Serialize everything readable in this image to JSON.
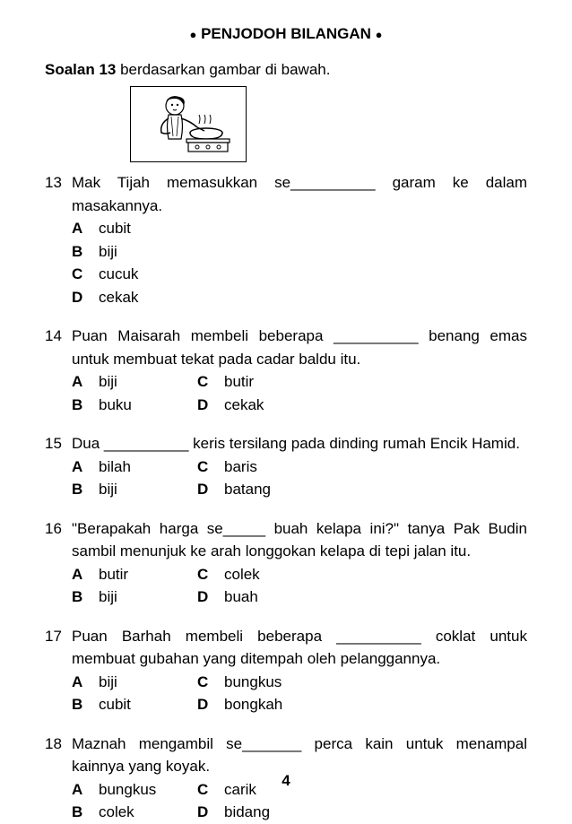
{
  "title_text": "PENJODOH BILANGAN",
  "instruction_prefix": "Soalan 13",
  "instruction_rest": " berdasarkan gambar di bawah.",
  "page_number": "4",
  "questions": [
    {
      "num": "13",
      "text": "Mak Tijah memasukkan se__________ garam ke dalam masakannya.",
      "layout": "1col",
      "options": [
        {
          "letter": "A",
          "text": "cubit"
        },
        {
          "letter": "B",
          "text": "biji"
        },
        {
          "letter": "C",
          "text": "cucuk"
        },
        {
          "letter": "D",
          "text": "cekak"
        }
      ]
    },
    {
      "num": "14",
      "text": "Puan Maisarah membeli beberapa __________ benang emas untuk membuat tekat pada cadar baldu itu.",
      "layout": "2col",
      "options": [
        {
          "letter": "A",
          "text": "biji"
        },
        {
          "letter": "C",
          "text": "butir"
        },
        {
          "letter": "B",
          "text": "buku"
        },
        {
          "letter": "D",
          "text": "cekak"
        }
      ]
    },
    {
      "num": "15",
      "text": "Dua __________ keris tersilang pada dinding rumah Encik Hamid.",
      "layout": "2col",
      "options": [
        {
          "letter": "A",
          "text": "bilah"
        },
        {
          "letter": "C",
          "text": "baris"
        },
        {
          "letter": "B",
          "text": "biji"
        },
        {
          "letter": "D",
          "text": "batang"
        }
      ]
    },
    {
      "num": "16",
      "text": "\"Berapakah harga se_____ buah kelapa ini?\" tanya Pak Budin sambil menunjuk ke arah longgokan kelapa di tepi jalan itu.",
      "layout": "2col",
      "options": [
        {
          "letter": "A",
          "text": "butir"
        },
        {
          "letter": "C",
          "text": "colek"
        },
        {
          "letter": "B",
          "text": "biji"
        },
        {
          "letter": "D",
          "text": "buah"
        }
      ]
    },
    {
      "num": "17",
      "text": "Puan Barhah membeli beberapa __________ coklat untuk membuat gubahan yang ditempah oleh pelanggannya.",
      "layout": "2col",
      "options": [
        {
          "letter": "A",
          "text": "biji"
        },
        {
          "letter": "C",
          "text": "bungkus"
        },
        {
          "letter": "B",
          "text": "cubit"
        },
        {
          "letter": "D",
          "text": "bongkah"
        }
      ]
    },
    {
      "num": "18",
      "text": "Maznah mengambil se_______ perca kain untuk menampal kainnya yang koyak.",
      "layout": "2col",
      "options": [
        {
          "letter": "A",
          "text": "bungkus"
        },
        {
          "letter": "C",
          "text": "carik"
        },
        {
          "letter": "B",
          "text": "colek"
        },
        {
          "letter": "D",
          "text": "bidang"
        }
      ]
    }
  ]
}
